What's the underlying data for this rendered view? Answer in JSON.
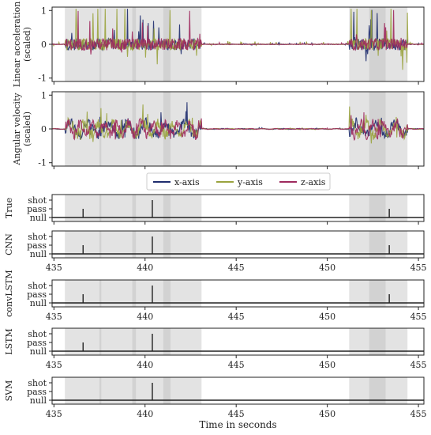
{
  "chart_data": {
    "type": "line",
    "xlabel": "Time in seconds",
    "xlim": [
      434.9,
      455.3
    ],
    "xticks": [
      435,
      440,
      445,
      450,
      455
    ],
    "shaded_regions": [
      [
        435.6,
        443.1
      ],
      [
        451.2,
        454.4
      ]
    ],
    "darker_bands": [
      [
        437.5,
        437.6
      ],
      [
        439.3,
        439.5
      ],
      [
        441.0,
        441.4
      ],
      [
        452.3,
        453.2
      ]
    ],
    "sensor_series": [
      {
        "name": "x-axis",
        "color": "#1f2d6e"
      },
      {
        "name": "y-axis",
        "color": "#9aa33e"
      },
      {
        "name": "z-axis",
        "color": "#9e2a5e"
      }
    ],
    "sensor_panels": [
      {
        "ylabel_1": "Linear acceleration",
        "ylabel_2": "(scaled)",
        "yticks": [
          -1,
          0,
          1
        ],
        "ylim": [
          -1.1,
          1.1
        ]
      },
      {
        "ylabel_1": "Angular velocity",
        "ylabel_2": "(scaled)",
        "yticks": [
          -1,
          0,
          1
        ],
        "ylim": [
          -1.1,
          1.1
        ]
      }
    ],
    "class_levels": [
      "null",
      "pass",
      "shot"
    ],
    "prediction_panels": [
      {
        "name": "True",
        "events": [
          {
            "t": 436.6,
            "class": "pass"
          },
          {
            "t": 440.4,
            "class": "shot"
          },
          {
            "t": 453.4,
            "class": "pass"
          }
        ]
      },
      {
        "name": "CNN",
        "events": [
          {
            "t": 436.6,
            "class": "pass"
          },
          {
            "t": 440.4,
            "class": "shot"
          },
          {
            "t": 453.4,
            "class": "pass"
          }
        ]
      },
      {
        "name": "convLSTM",
        "events": [
          {
            "t": 436.6,
            "class": "pass"
          },
          {
            "t": 440.4,
            "class": "shot"
          },
          {
            "t": 453.4,
            "class": "pass"
          }
        ]
      },
      {
        "name": "LSTM",
        "events": [
          {
            "t": 436.6,
            "class": "pass"
          },
          {
            "t": 440.4,
            "class": "shot"
          }
        ]
      },
      {
        "name": "SVM",
        "events": [
          {
            "t": 440.4,
            "class": "shot"
          }
        ]
      }
    ]
  }
}
